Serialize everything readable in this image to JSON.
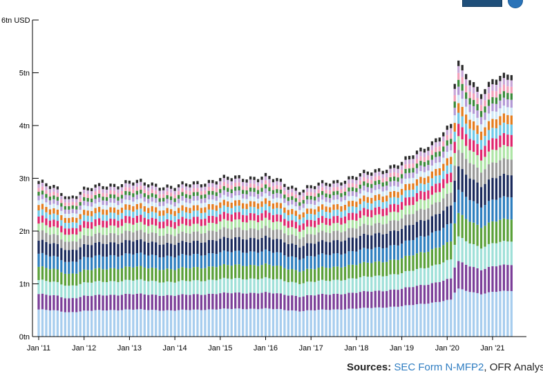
{
  "chart_data": {
    "type": "bar",
    "stacked": true,
    "y_unit_label": "6tn USD",
    "ylim": [
      0,
      6
    ],
    "yticks": [
      "0tn",
      "1tn",
      "2tn",
      "3tn",
      "4tn",
      "5tn",
      "6tn USD"
    ],
    "yticks_values": [
      0,
      1,
      2,
      3,
      4,
      5,
      6
    ],
    "xticks": [
      "Jan '11",
      "Jan '12",
      "Jan '13",
      "Jan '14",
      "Jan '15",
      "Jan '16",
      "Jan '17",
      "Jan '18",
      "Jan '19",
      "Jan '20",
      "Jan '21"
    ],
    "period": "monthly, Jan 2011 - Jun 2021",
    "totals_anchor_tn": [
      [
        "2011-01",
        2.95
      ],
      [
        "2011-06",
        2.8
      ],
      [
        "2011-09",
        2.65
      ],
      [
        "2012-01",
        2.8
      ],
      [
        "2013-01",
        2.95
      ],
      [
        "2014-01",
        2.85
      ],
      [
        "2015-01",
        3.0
      ],
      [
        "2016-01",
        3.05
      ],
      [
        "2016-10",
        2.8
      ],
      [
        "2017-01",
        2.85
      ],
      [
        "2018-01",
        3.05
      ],
      [
        "2019-01",
        3.3
      ],
      [
        "2019-09",
        3.7
      ],
      [
        "2020-02",
        4.0
      ],
      [
        "2020-03",
        4.8
      ],
      [
        "2020-04",
        5.2
      ],
      [
        "2020-06",
        5.0
      ],
      [
        "2020-10",
        4.65
      ],
      [
        "2021-01",
        4.85
      ],
      [
        "2021-06",
        5.0
      ]
    ],
    "series_colors": [
      "#a7cdee",
      "#7b3f99",
      "#9fe0d8",
      "#5aa13a",
      "#2e7fbf",
      "#1a2a5c",
      "#999999",
      "#aee5a6",
      "#e0266e",
      "#6fc9e8",
      "#e57d1f",
      "#cfe9f7",
      "#b39ad6",
      "#3b8b3b",
      "#f3a0b9",
      "#c9a7d8",
      "#2a2a2a"
    ],
    "series_shares": [
      0.175,
      0.1,
      0.09,
      0.085,
      0.085,
      0.085,
      0.06,
      0.05,
      0.045,
      0.04,
      0.035,
      0.03,
      0.03,
      0.025,
      0.025,
      0.025,
      0.02
    ],
    "grid": false,
    "legend": "none"
  },
  "sources": {
    "label": "Sources:",
    "link": "SEC Form N-MFP2",
    "rest": ", OFR Analysis"
  }
}
